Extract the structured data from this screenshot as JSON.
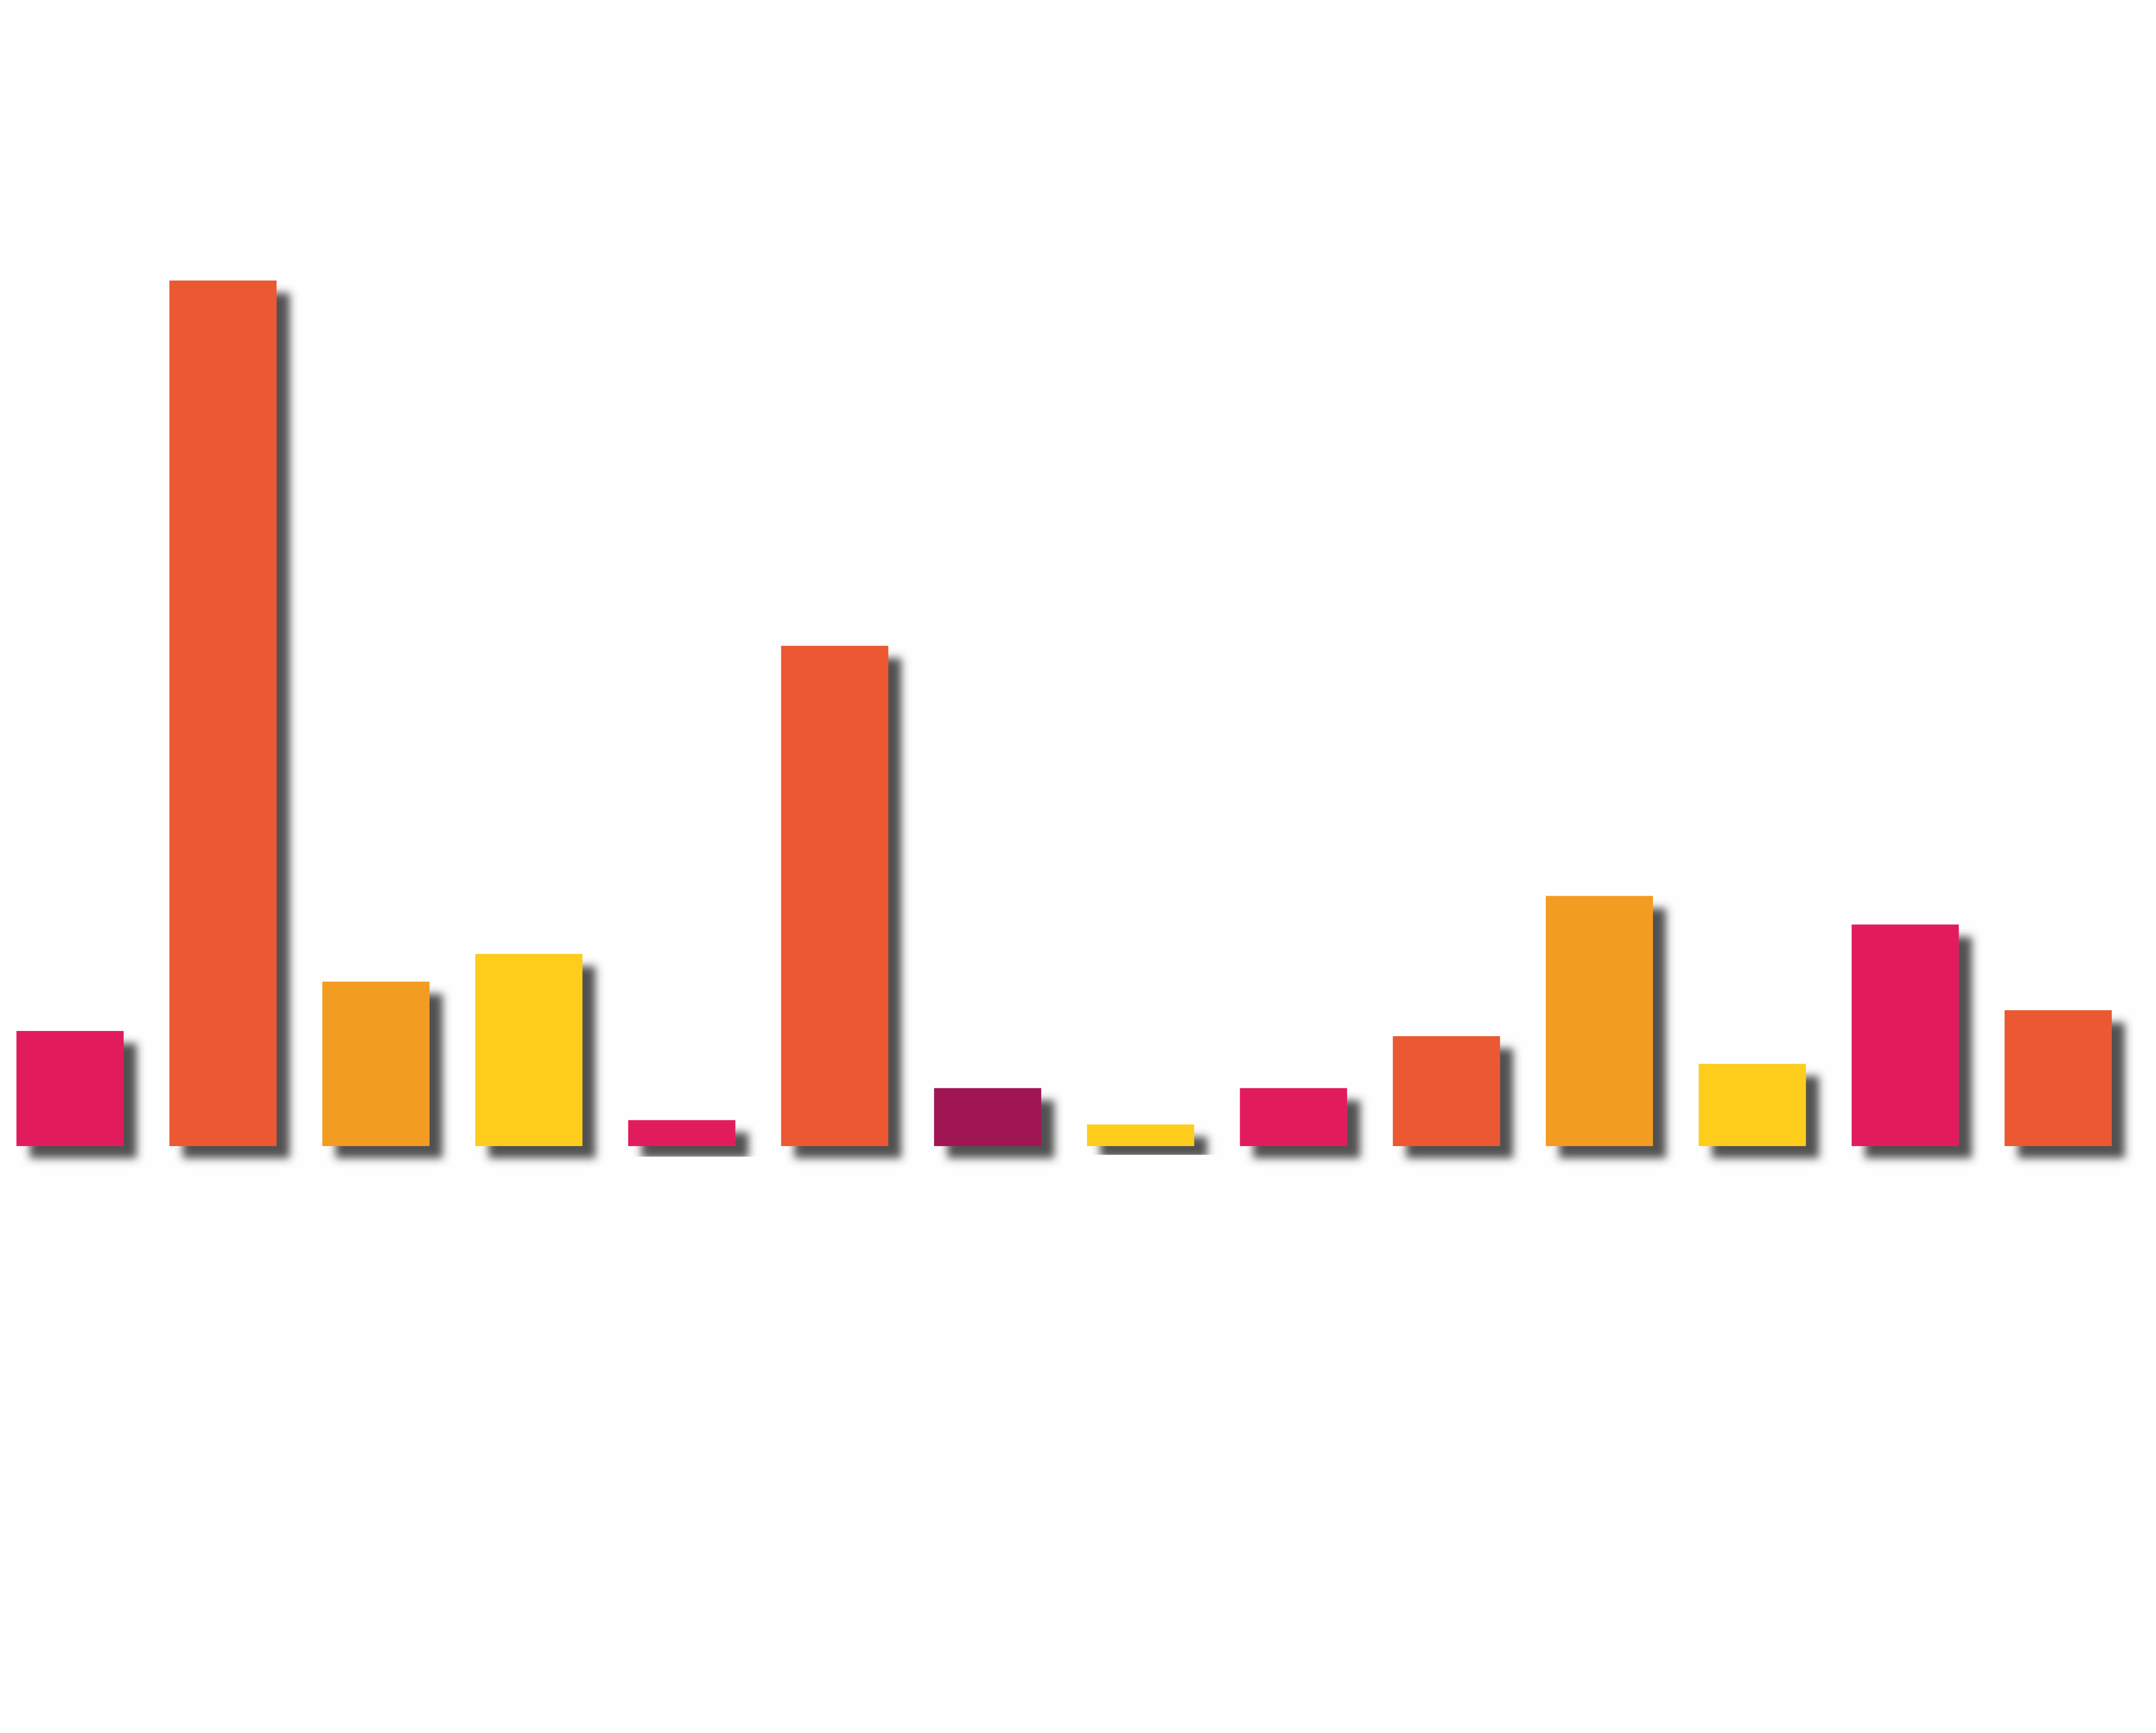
{
  "chart_data": {
    "type": "bar",
    "categories": [
      null,
      null,
      null,
      null,
      null,
      null,
      null,
      null,
      null,
      null,
      null,
      null,
      null,
      null
    ],
    "values": [
      13.3,
      100,
      19,
      22.2,
      3,
      57.8,
      6.7,
      2.5,
      6.7,
      12.7,
      28.9,
      9.5,
      25.6,
      15.7
    ],
    "colors": [
      "#e21f5b",
      "#eb5933",
      "#f39c23",
      "#fecd1b",
      "#e21f5b",
      "#eb5933",
      "#a01654",
      "#fecd1b",
      "#e21f5b",
      "#eb5933",
      "#f39c23",
      "#fecd1b",
      "#e21f5b",
      "#eb5933"
    ],
    "ylim": [
      0,
      100
    ]
  }
}
